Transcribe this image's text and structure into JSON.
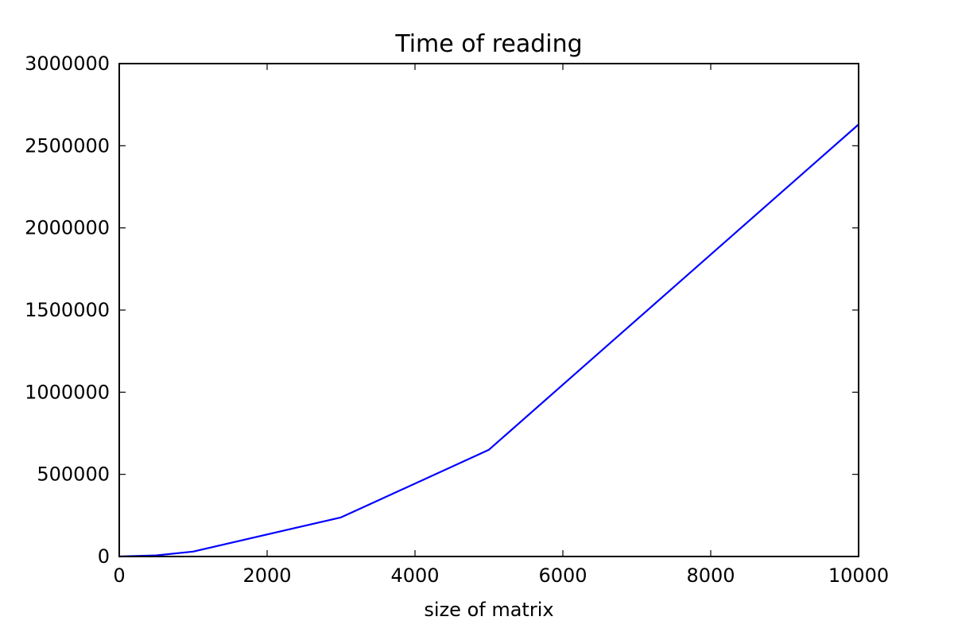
{
  "chart_data": {
    "type": "line",
    "title": "Time of reading",
    "xlabel": "size of matrix",
    "ylabel": "",
    "xlim": [
      0,
      10000
    ],
    "ylim": [
      0,
      3000000
    ],
    "xticks": [
      0,
      2000,
      4000,
      6000,
      8000,
      10000
    ],
    "yticks": [
      0,
      500000,
      1000000,
      1500000,
      2000000,
      2500000,
      3000000
    ],
    "xtick_labels": [
      "0",
      "2000",
      "4000",
      "6000",
      "8000",
      "10000"
    ],
    "ytick_labels": [
      "0",
      "500000",
      "1000000",
      "1500000",
      "2000000",
      "2500000",
      "3000000"
    ],
    "grid": false,
    "series": [
      {
        "color": "#0000ff",
        "x": [
          0,
          500,
          1000,
          3000,
          5000,
          10000
        ],
        "y": [
          0,
          7000,
          30000,
          238000,
          650000,
          2630000
        ]
      }
    ]
  }
}
